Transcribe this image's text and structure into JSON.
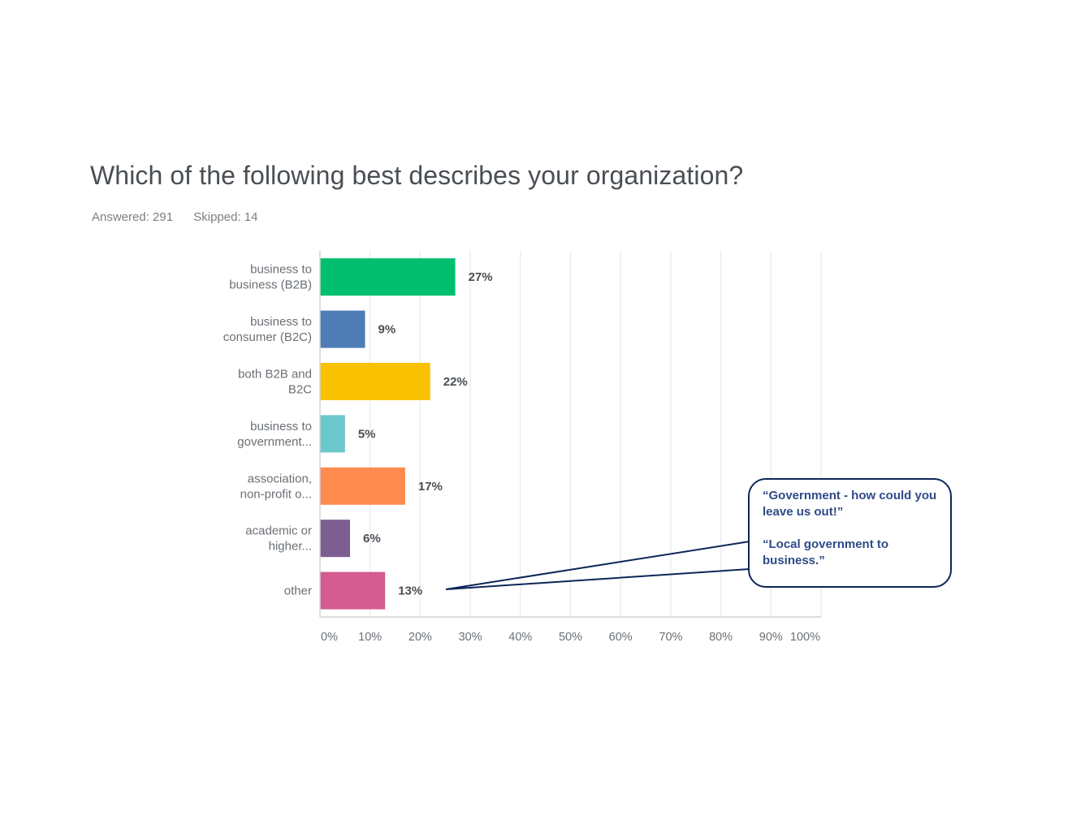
{
  "question": {
    "title": "Which of the following best describes your organization?",
    "answered": "Answered: 291",
    "skipped": "Skipped: 14"
  },
  "chart_data": {
    "type": "bar",
    "orientation": "horizontal",
    "title": "Which of the following best describes your organization?",
    "categories": [
      [
        "business to",
        "business (B2B)"
      ],
      [
        "business to",
        "consumer (B2C)"
      ],
      [
        "both B2B and",
        "B2C"
      ],
      [
        "business to",
        "government..."
      ],
      [
        "association,",
        "non-profit o..."
      ],
      [
        "academic or",
        "higher..."
      ],
      [
        "other"
      ]
    ],
    "values": [
      27,
      9,
      22,
      5,
      17,
      6,
      13
    ],
    "value_labels": [
      "27%",
      "9%",
      "22%",
      "5%",
      "17%",
      "6%",
      "13%"
    ],
    "colors": [
      "#02bf6f",
      "#507cb6",
      "#f8c200",
      "#6bc8cd",
      "#ff8b4f",
      "#7d5e90",
      "#d45b8f"
    ],
    "xlim": [
      0,
      100
    ],
    "xticks": [
      "0%",
      "10%",
      "20%",
      "30%",
      "40%",
      "50%",
      "60%",
      "70%",
      "80%",
      "90%",
      "100%"
    ],
    "grid": true,
    "legend": "none"
  },
  "callout": {
    "quote1": "“Government - how could you leave us out!”",
    "quote2": "“Local government to business.”",
    "points_to": "other"
  },
  "colors": {
    "title": "#4a4f54",
    "axis_text": "#6b7075",
    "grid": "#e8eaec",
    "callout_border": "#0d2659",
    "callout_text": "#2f4b87"
  }
}
